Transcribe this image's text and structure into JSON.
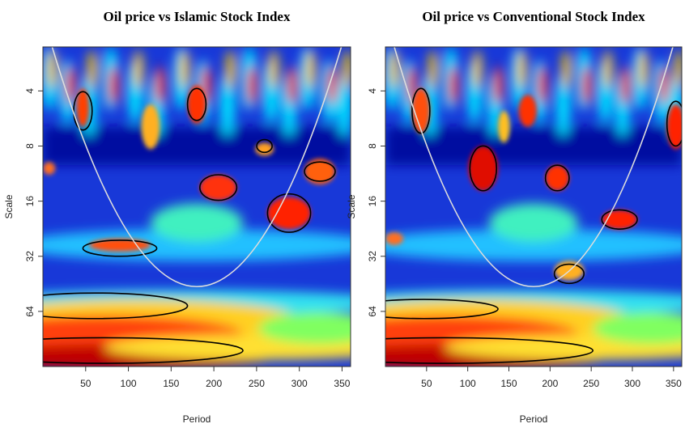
{
  "chart_data": [
    {
      "type": "heatmap",
      "title": "Oil price vs Islamic Stock Index",
      "x_label": "Period",
      "y_label": "Scale",
      "xlim": [
        0,
        360
      ],
      "xticks": [
        50,
        100,
        150,
        200,
        250,
        300,
        350
      ],
      "ylim": [
        128,
        2.3
      ],
      "yticks": [
        4,
        8,
        16,
        32,
        64
      ],
      "y_log": true
    },
    {
      "type": "heatmap",
      "title": "Oil price vs Conventional Stock Index",
      "x_label": "Period",
      "y_label": "Scale",
      "xlim": [
        0,
        360
      ],
      "xticks": [
        50,
        100,
        150,
        200,
        250,
        300,
        350
      ],
      "ylim": [
        128,
        2.3
      ],
      "yticks": [
        4,
        8,
        16,
        32,
        64
      ],
      "y_log": true
    }
  ]
}
